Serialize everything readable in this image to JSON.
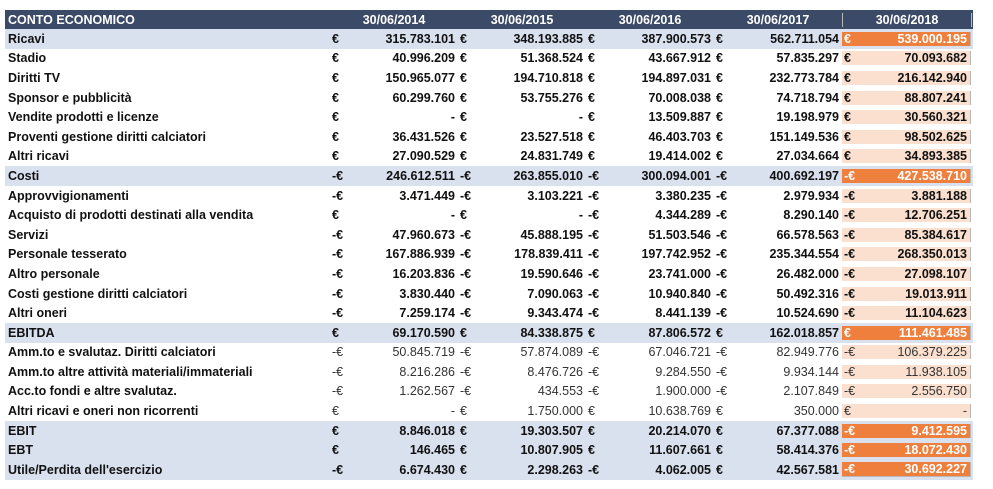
{
  "table": {
    "title": "CONTO ECONOMICO",
    "years": [
      "30/06/2014",
      "30/06/2015",
      "30/06/2016",
      "30/06/2017",
      "30/06/2018"
    ],
    "rows": [
      {
        "label": "Ricavi",
        "style": "bold",
        "shaded": true,
        "hl": true,
        "cur": [
          "€",
          "€",
          "€",
          "€",
          "€"
        ],
        "values": [
          "315.783.101",
          "348.193.885",
          "387.900.573",
          "562.711.054",
          "539.000.195"
        ]
      },
      {
        "label": "Stadio",
        "style": "bold",
        "shaded": false,
        "hl": false,
        "cur": [
          "€",
          "€",
          "€",
          "€",
          "€"
        ],
        "values": [
          "40.996.209",
          "51.368.524",
          "43.667.912",
          "57.835.297",
          "70.093.682"
        ]
      },
      {
        "label": "Diritti TV",
        "style": "bold",
        "shaded": false,
        "hl": false,
        "cur": [
          "€",
          "€",
          "€",
          "€",
          "€"
        ],
        "values": [
          "150.965.077",
          "194.710.818",
          "194.897.031",
          "232.773.784",
          "216.142.940"
        ]
      },
      {
        "label": "Sponsor e pubblicità",
        "style": "bold",
        "shaded": false,
        "hl": false,
        "cur": [
          "€",
          "€",
          "€",
          "€",
          "€"
        ],
        "values": [
          "60.299.760",
          "53.755.276",
          "70.008.038",
          "74.718.794",
          "88.807.241"
        ]
      },
      {
        "label": "Vendite prodotti e licenze",
        "style": "bold",
        "shaded": false,
        "hl": false,
        "cur": [
          "€",
          "€",
          "€",
          "€",
          "€"
        ],
        "values": [
          "-",
          "-",
          "13.509.887",
          "19.198.979",
          "30.560.321"
        ]
      },
      {
        "label": "Proventi gestione diritti calciatori",
        "style": "bold",
        "shaded": false,
        "hl": false,
        "cur": [
          "€",
          "€",
          "€",
          "€",
          "€"
        ],
        "values": [
          "36.431.526",
          "23.527.518",
          "46.403.703",
          "151.149.536",
          "98.502.625"
        ]
      },
      {
        "label": "Altri ricavi",
        "style": "bold",
        "shaded": false,
        "hl": false,
        "cur": [
          "€",
          "€",
          "€",
          "€",
          "€"
        ],
        "values": [
          "27.090.529",
          "24.831.749",
          "19.414.002",
          "27.034.664",
          "34.893.385"
        ]
      },
      {
        "label": "Costi",
        "style": "bold",
        "shaded": true,
        "hl": true,
        "cur": [
          "-€",
          "-€",
          "-€",
          "-€",
          "-€"
        ],
        "values": [
          "246.612.511",
          "263.855.010",
          "300.094.001",
          "400.692.197",
          "427.538.710"
        ]
      },
      {
        "label": "Approvvigionamenti",
        "style": "bold",
        "shaded": false,
        "hl": false,
        "cur": [
          "-€",
          "-€",
          "-€",
          "-€",
          "-€"
        ],
        "values": [
          "3.471.449",
          "3.103.221",
          "3.380.235",
          "2.979.934",
          "3.881.188"
        ]
      },
      {
        "label": "Acquisto di prodotti destinati alla vendita",
        "style": "bold",
        "shaded": false,
        "hl": false,
        "cur": [
          "€",
          "€",
          "-€",
          "-€",
          "-€"
        ],
        "values": [
          "-",
          "-",
          "4.344.289",
          "8.290.140",
          "12.706.251"
        ]
      },
      {
        "label": "Servizi",
        "style": "bold",
        "shaded": false,
        "hl": false,
        "cur": [
          "-€",
          "-€",
          "-€",
          "-€",
          "-€"
        ],
        "values": [
          "47.960.673",
          "45.888.195",
          "51.503.546",
          "66.578.563",
          "85.384.617"
        ]
      },
      {
        "label": "Personale tesserato",
        "style": "bold",
        "shaded": false,
        "hl": false,
        "cur": [
          "-€",
          "-€",
          "-€",
          "-€",
          "-€"
        ],
        "values": [
          "167.886.939",
          "178.839.411",
          "197.742.952",
          "235.344.554",
          "268.350.013"
        ]
      },
      {
        "label": "Altro personale",
        "style": "bold",
        "shaded": false,
        "hl": false,
        "cur": [
          "-€",
          "-€",
          "-€",
          "-€",
          "-€"
        ],
        "values": [
          "16.203.836",
          "19.590.646",
          "23.741.000",
          "26.482.000",
          "27.098.107"
        ]
      },
      {
        "label": "Costi gestione diritti calciatori",
        "style": "bold",
        "shaded": false,
        "hl": false,
        "cur": [
          "-€",
          "-€",
          "-€",
          "-€",
          "-€"
        ],
        "values": [
          "3.830.440",
          "7.090.063",
          "10.940.840",
          "50.492.316",
          "19.013.911"
        ]
      },
      {
        "label": "Altri oneri",
        "style": "bold",
        "shaded": false,
        "hl": false,
        "cur": [
          "-€",
          "-€",
          "-€",
          "-€",
          "-€"
        ],
        "values": [
          "7.259.174",
          "9.343.474",
          "8.441.139",
          "10.524.690",
          "11.104.623"
        ]
      },
      {
        "label": "EBITDA",
        "style": "bold",
        "shaded": true,
        "hl": true,
        "cur": [
          "€",
          "€",
          "€",
          "€",
          "€"
        ],
        "values": [
          "69.170.590",
          "84.338.875",
          "87.806.572",
          "162.018.857",
          "111.461.485"
        ]
      },
      {
        "label": "Amm.to e svalutaz. Diritti calciatori",
        "style": "light",
        "shaded": false,
        "hl": false,
        "cur": [
          "-€",
          "-€",
          "-€",
          "-€",
          "-€"
        ],
        "values": [
          "50.845.719",
          "57.874.089",
          "67.046.721",
          "82.949.776",
          "106.379.225"
        ]
      },
      {
        "label": "Amm.to altre attività materiali/immateriali",
        "style": "light",
        "shaded": false,
        "hl": false,
        "cur": [
          "-€",
          "-€",
          "-€",
          "-€",
          "-€"
        ],
        "values": [
          "8.216.286",
          "8.476.726",
          "9.284.550",
          "9.934.144",
          "11.938.105"
        ]
      },
      {
        "label": "Acc.to fondi e altre svalutaz.",
        "style": "light",
        "shaded": false,
        "hl": false,
        "cur": [
          "-€",
          "-€",
          "-€",
          "-€",
          "-€"
        ],
        "values": [
          "1.262.567",
          "434.553",
          "1.900.000",
          "2.107.849",
          "2.556.750"
        ]
      },
      {
        "label": "Altri ricavi e oneri non ricorrenti",
        "style": "light",
        "shaded": false,
        "hl": false,
        "cur": [
          "€",
          "€",
          "€",
          "€",
          "€"
        ],
        "values": [
          "-",
          "1.750.000",
          "10.638.769",
          "350.000",
          "-"
        ]
      },
      {
        "label": "EBIT",
        "style": "bold",
        "shaded": true,
        "hl": true,
        "cur": [
          "€",
          "€",
          "€",
          "€",
          "-€"
        ],
        "values": [
          "8.846.018",
          "19.303.507",
          "20.214.070",
          "67.377.088",
          "9.412.595"
        ]
      },
      {
        "label": "EBT",
        "style": "bold",
        "shaded": true,
        "hl": true,
        "cur": [
          "€",
          "€",
          "€",
          "€",
          "-€"
        ],
        "values": [
          "146.465",
          "10.807.905",
          "11.607.661",
          "58.414.376",
          "18.072.430"
        ]
      },
      {
        "label": "Utile/Perdita dell'esercizio",
        "style": "bold",
        "shaded": true,
        "hl": true,
        "cur": [
          "-€",
          "€",
          "-€",
          "€",
          "-€"
        ],
        "values": [
          "6.674.430",
          "2.298.263",
          "4.062.005",
          "42.567.581",
          "30.692.227"
        ]
      }
    ]
  }
}
